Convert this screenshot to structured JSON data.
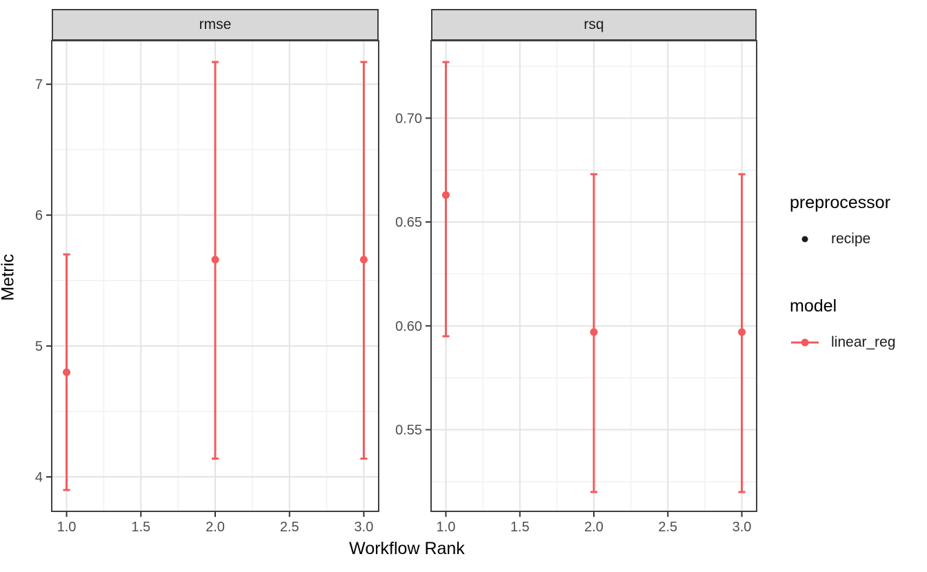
{
  "chart_data": {
    "type": "scatter",
    "subtype": "points-with-errorbars-faceted",
    "xlabel": "Workflow Rank",
    "ylabel": "Metric",
    "series_color": "#F4595B",
    "grid": {
      "major": "#E3E3E3",
      "minor": "#F1F1F1",
      "on": true
    },
    "strip_background": "#D8D8D8",
    "panel_border_color": "#3F3F3F",
    "tick_label_color": "#4D4D4D",
    "x": {
      "lim": [
        0.9,
        3.1
      ],
      "ticks": [
        1.0,
        1.5,
        2.0,
        2.5,
        3.0
      ],
      "tick_labels": [
        "1.0",
        "1.5",
        "2.0",
        "2.5",
        "3.0"
      ],
      "minor": [
        1.25,
        1.75,
        2.25,
        2.75
      ]
    },
    "facets": [
      {
        "label": "rmse",
        "ylim": [
          3.737,
          7.333
        ],
        "y_tick_values": [
          4,
          5,
          6,
          7
        ],
        "y_ticks": [
          "4",
          "5",
          "6",
          "7"
        ],
        "y_minor": [
          4.5,
          5.5,
          6.5
        ],
        "points": [
          {
            "x": 1.0,
            "y": 4.8,
            "ymin": 3.9,
            "ymax": 5.7
          },
          {
            "x": 2.0,
            "y": 5.66,
            "ymin": 4.14,
            "ymax": 7.17
          },
          {
            "x": 3.0,
            "y": 5.66,
            "ymin": 4.14,
            "ymax": 7.17
          }
        ]
      },
      {
        "label": "rsq",
        "ylim": [
          0.5107,
          0.7373
        ],
        "y_tick_values": [
          0.55,
          0.6,
          0.65,
          0.7
        ],
        "y_ticks": [
          "0.55",
          "0.60",
          "0.65",
          "0.70"
        ],
        "y_minor": [
          0.525,
          0.575,
          0.625,
          0.675,
          0.725
        ],
        "points": [
          {
            "x": 1.0,
            "y": 0.663,
            "ymin": 0.595,
            "ymax": 0.727
          },
          {
            "x": 2.0,
            "y": 0.597,
            "ymin": 0.52,
            "ymax": 0.673
          },
          {
            "x": 3.0,
            "y": 0.597,
            "ymin": 0.52,
            "ymax": 0.673
          }
        ]
      }
    ]
  },
  "legend": {
    "groups": [
      {
        "title": "preprocessor",
        "items": [
          {
            "label": "recipe",
            "marker": "point",
            "color": "#1A1A1A"
          }
        ]
      },
      {
        "title": "model",
        "items": [
          {
            "label": "linear_reg",
            "marker": "line-point",
            "color": "#F4595B"
          }
        ]
      }
    ]
  }
}
